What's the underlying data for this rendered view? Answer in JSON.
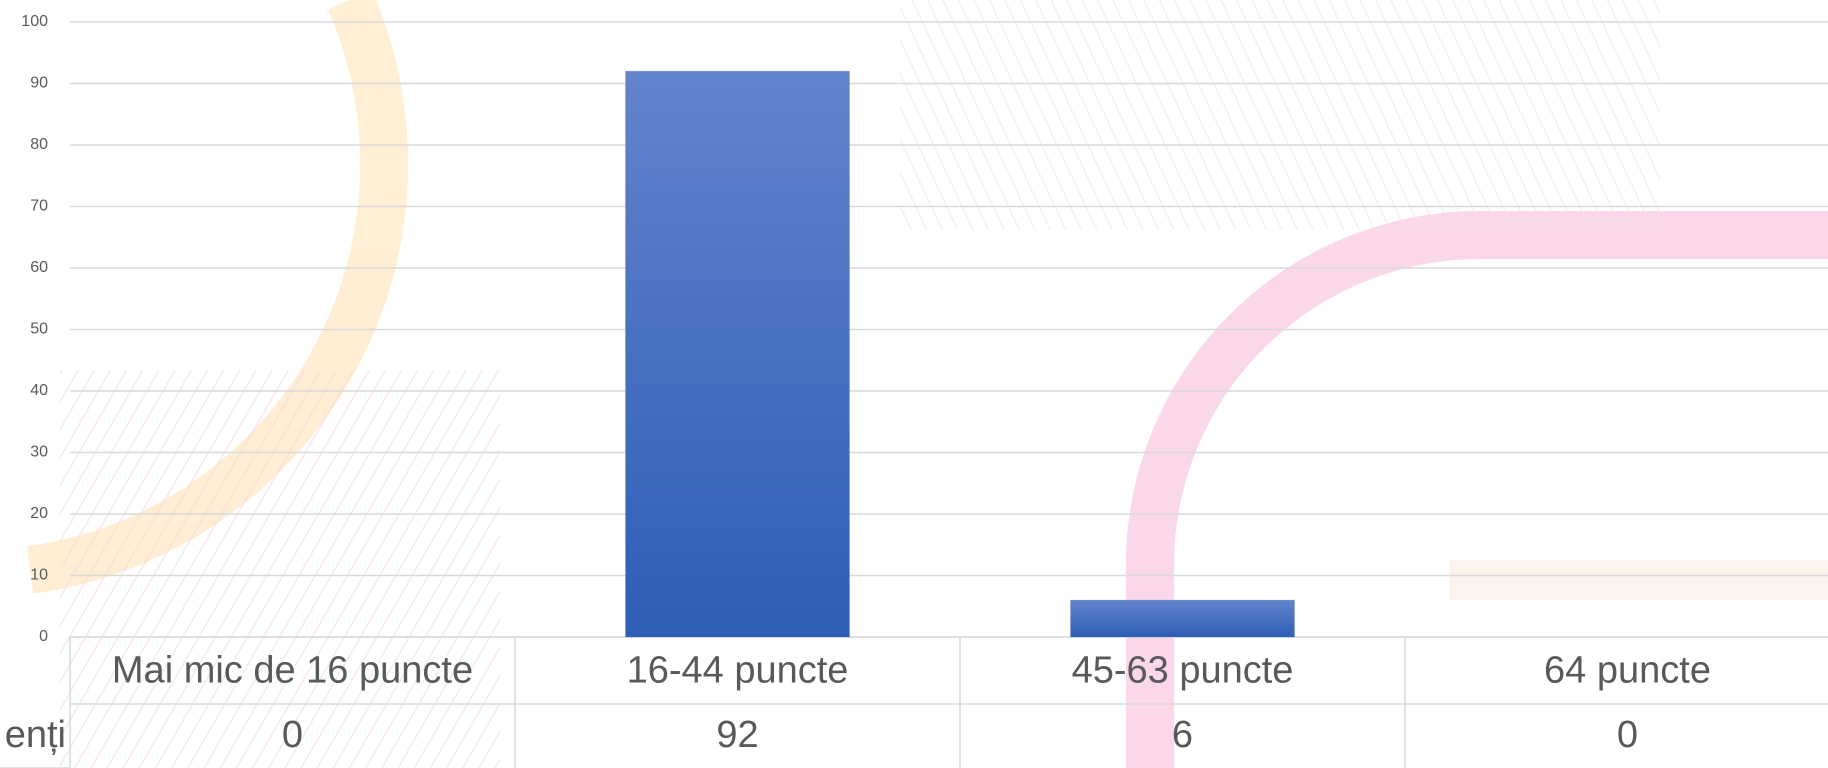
{
  "chart_data": {
    "type": "bar",
    "categories": [
      "Mai mic de 16 puncte",
      "16-44 puncte",
      "45-63 puncte",
      "64 puncte"
    ],
    "series": [
      {
        "name": "enți",
        "color": "#4472c4",
        "values": [
          0,
          92,
          6,
          0
        ]
      }
    ],
    "ylim": [
      0,
      100
    ],
    "yticks": [
      0,
      10,
      20,
      30,
      40,
      50,
      60,
      70,
      80,
      90,
      100
    ],
    "grid": true,
    "data_table": true
  }
}
